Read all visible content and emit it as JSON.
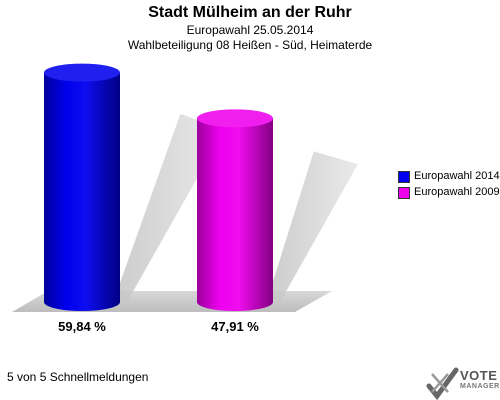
{
  "header": {
    "title": "Stadt Mülheim an der Ruhr",
    "subtitle": "Europawahl 25.05.2014",
    "subtitle2": "Wahlbeteiligung 08 Heißen - Süd, Heimaterde"
  },
  "chart_data": {
    "type": "bar",
    "title": "Stadt Mülheim an der Ruhr",
    "subtitle": "Europawahl 25.05.2014 / Wahlbeteiligung 08 Heißen - Süd, Heimaterde",
    "categories": [
      "Europawahl 2014",
      "Europawahl 2009"
    ],
    "values": [
      59.84,
      47.91
    ],
    "value_labels": [
      "59,84 %",
      "47,91 %"
    ],
    "colors": [
      "#0000ee",
      "#ee00ee"
    ],
    "ylim": [
      0,
      60
    ],
    "legend_placement": "right",
    "grid": false
  },
  "legend": [
    {
      "label": "Europawahl 2014",
      "color": "#0000ee"
    },
    {
      "label": "Europawahl 2009",
      "color": "#ee00ee"
    }
  ],
  "footer": {
    "text": "5 von 5 Schnellmeldungen"
  },
  "logo": {
    "line1": "VOTE",
    "line2": "MANAGER"
  }
}
